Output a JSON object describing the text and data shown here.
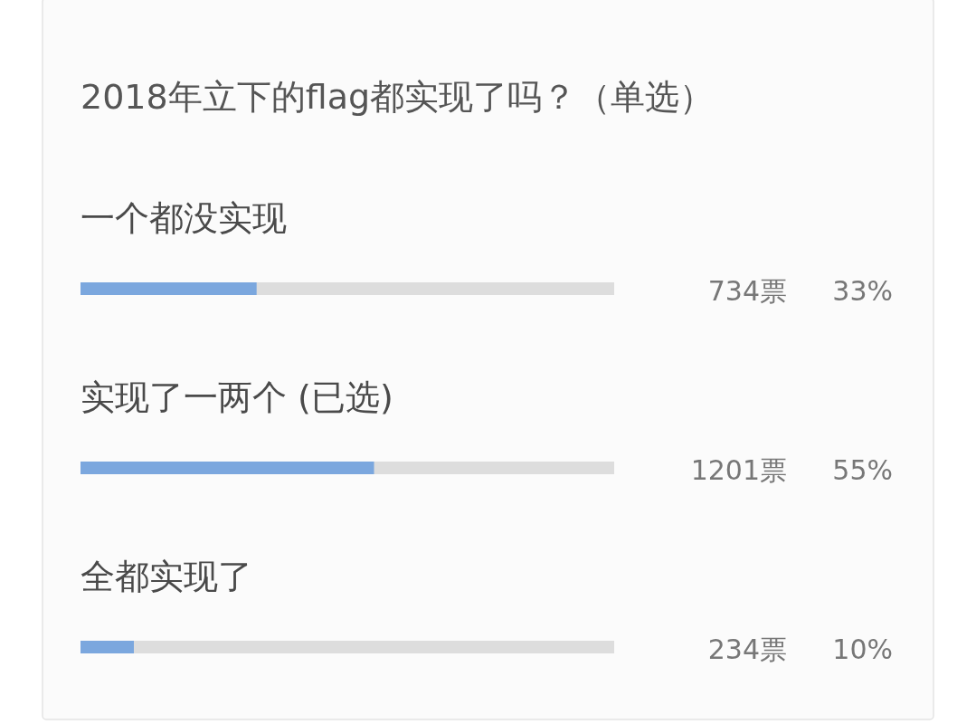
{
  "chart_data": {
    "type": "bar",
    "orientation": "horizontal",
    "title": "2018年立下的flag都实现了吗？（单选）",
    "categories": [
      "一个都没实现",
      "实现了一两个 (已选)",
      "全都实现了"
    ],
    "values": [
      33,
      55,
      10
    ],
    "value_labels": [
      "33%",
      "55%",
      "10%"
    ],
    "color": "#7ba7de",
    "xlim": [
      0,
      100
    ],
    "annotations": [
      "734票",
      "1201票",
      "234票"
    ]
  }
}
